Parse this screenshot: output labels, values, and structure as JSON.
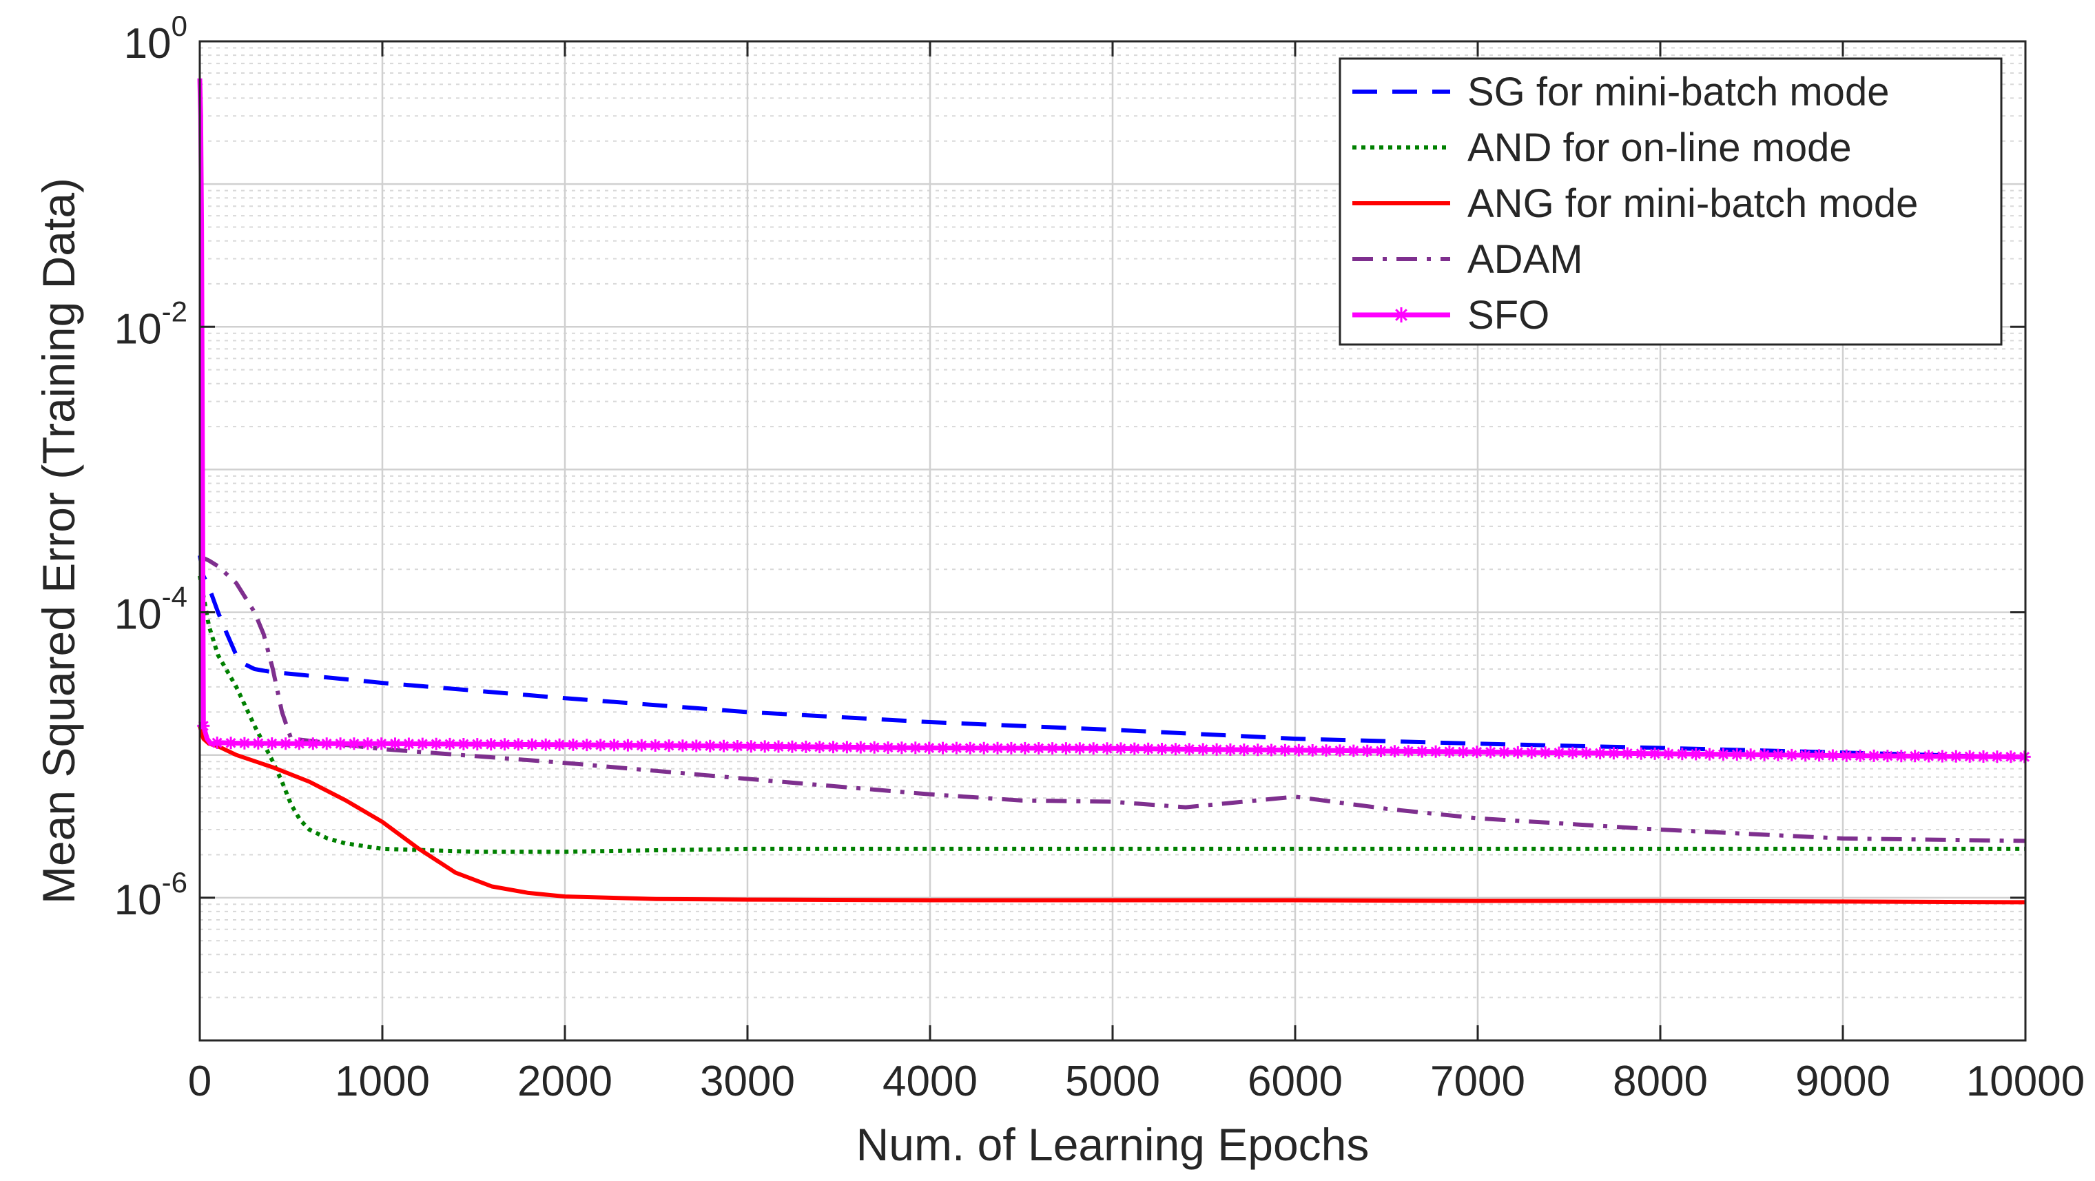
{
  "chart_data": {
    "type": "line",
    "title": "",
    "xlabel": "Num. of Learning Epochs",
    "ylabel": "Mean Squared Error (Training Data)",
    "xlim": [
      0,
      10000
    ],
    "ylim": [
      1e-07,
      1
    ],
    "yscale": "log",
    "grid": true,
    "legend_position": "top-right",
    "x_ticks": [
      0,
      1000,
      2000,
      3000,
      4000,
      5000,
      6000,
      7000,
      8000,
      9000,
      10000
    ],
    "x_tick_labels": [
      "0",
      "1000",
      "2000",
      "3000",
      "4000",
      "5000",
      "6000",
      "7000",
      "8000",
      "9000",
      "10000"
    ],
    "y_ticks": [
      {
        "value": 1,
        "base": "10",
        "exp": "0"
      },
      {
        "value": 0.01,
        "base": "10",
        "exp": "-2"
      },
      {
        "value": 0.0001,
        "base": "10",
        "exp": "-4"
      },
      {
        "value": 1e-06,
        "base": "10",
        "exp": "-6"
      }
    ],
    "series": [
      {
        "name": "SG for mini-batch mode",
        "color": "#0000ff",
        "style": "dashed",
        "x": [
          0,
          20,
          50,
          100,
          150,
          200,
          250,
          300,
          400,
          500,
          1000,
          2000,
          3000,
          4000,
          5000,
          6000,
          7000,
          8000,
          9000,
          10000
        ],
        "y": [
          0.00025,
          0.00018,
          0.00015,
          0.0001,
          7e-05,
          5e-05,
          4.3e-05,
          4e-05,
          3.8e-05,
          3.7e-05,
          3.2e-05,
          2.5e-05,
          2e-05,
          1.7e-05,
          1.5e-05,
          1.3e-05,
          1.2e-05,
          1.12e-05,
          1.04e-05,
          9.6e-06
        ]
      },
      {
        "name": "AND for on-line mode",
        "color": "#008000",
        "style": "dotted",
        "x": [
          0,
          50,
          100,
          200,
          300,
          400,
          450,
          500,
          550,
          600,
          700,
          800,
          1000,
          1500,
          2000,
          3000,
          4000,
          5000,
          6000,
          7000,
          8000,
          9000,
          10000
        ],
        "y": [
          0.00018,
          8e-05,
          5e-05,
          3e-05,
          1.6e-05,
          9e-06,
          6.5e-06,
          4.5e-06,
          3.5e-06,
          3e-06,
          2.6e-06,
          2.4e-06,
          2.2e-06,
          2.1e-06,
          2.1e-06,
          2.2e-06,
          2.2e-06,
          2.2e-06,
          2.2e-06,
          2.2e-06,
          2.2e-06,
          2.2e-06,
          2.2e-06
        ]
      },
      {
        "name": "ANG for mini-batch mode",
        "color": "#ff0000",
        "style": "solid",
        "x": [
          0,
          20,
          50,
          100,
          200,
          400,
          600,
          800,
          1000,
          1200,
          1400,
          1600,
          1800,
          2000,
          2500,
          3000,
          4000,
          5000,
          6000,
          7000,
          8000,
          9000,
          10000
        ],
        "y": [
          1.6e-05,
          1.3e-05,
          1.2e-05,
          1.15e-05,
          1e-05,
          8.2e-06,
          6.5e-06,
          4.8e-06,
          3.4e-06,
          2.2e-06,
          1.5e-06,
          1.2e-06,
          1.08e-06,
          1.02e-06,
          9.8e-07,
          9.7e-07,
          9.6e-07,
          9.6e-07,
          9.6e-07,
          9.5e-07,
          9.5e-07,
          9.4e-07,
          9.3e-07
        ]
      },
      {
        "name": "ADAM",
        "color": "#7e2f8e",
        "style": "dashdot",
        "x": [
          0,
          20,
          50,
          100,
          200,
          300,
          350,
          400,
          450,
          500,
          1000,
          2000,
          3000,
          4000,
          4500,
          5000,
          5400,
          6000,
          6500,
          7000,
          8000,
          9000,
          10000
        ],
        "y": [
          0.00025,
          0.00024,
          0.00023,
          0.00021,
          0.00016,
          0.0001,
          7e-05,
          4e-05,
          2e-05,
          1.3e-05,
          1.1e-05,
          8.8e-06,
          6.8e-06,
          5.3e-06,
          4.8e-06,
          4.7e-06,
          4.3e-06,
          5.1e-06,
          4.2e-06,
          3.6e-06,
          3e-06,
          2.6e-06,
          2.5e-06
        ]
      },
      {
        "name": "SFO",
        "color": "#ff00ff",
        "style": "solid-star",
        "x": [
          0,
          5,
          10,
          20,
          40,
          60,
          100,
          200,
          500,
          1000,
          2000,
          3000,
          4000,
          5000,
          6000,
          7000,
          8000,
          9000,
          10000
        ],
        "y": [
          0.55,
          0.3,
          0.05,
          1.6e-05,
          1.3e-05,
          1.2e-05,
          1.22e-05,
          1.21e-05,
          1.2e-05,
          1.2e-05,
          1.18e-05,
          1.15e-05,
          1.12e-05,
          1.11e-05,
          1.08e-05,
          1.05e-05,
          1.02e-05,
          9.9e-06,
          9.7e-06
        ]
      }
    ]
  }
}
